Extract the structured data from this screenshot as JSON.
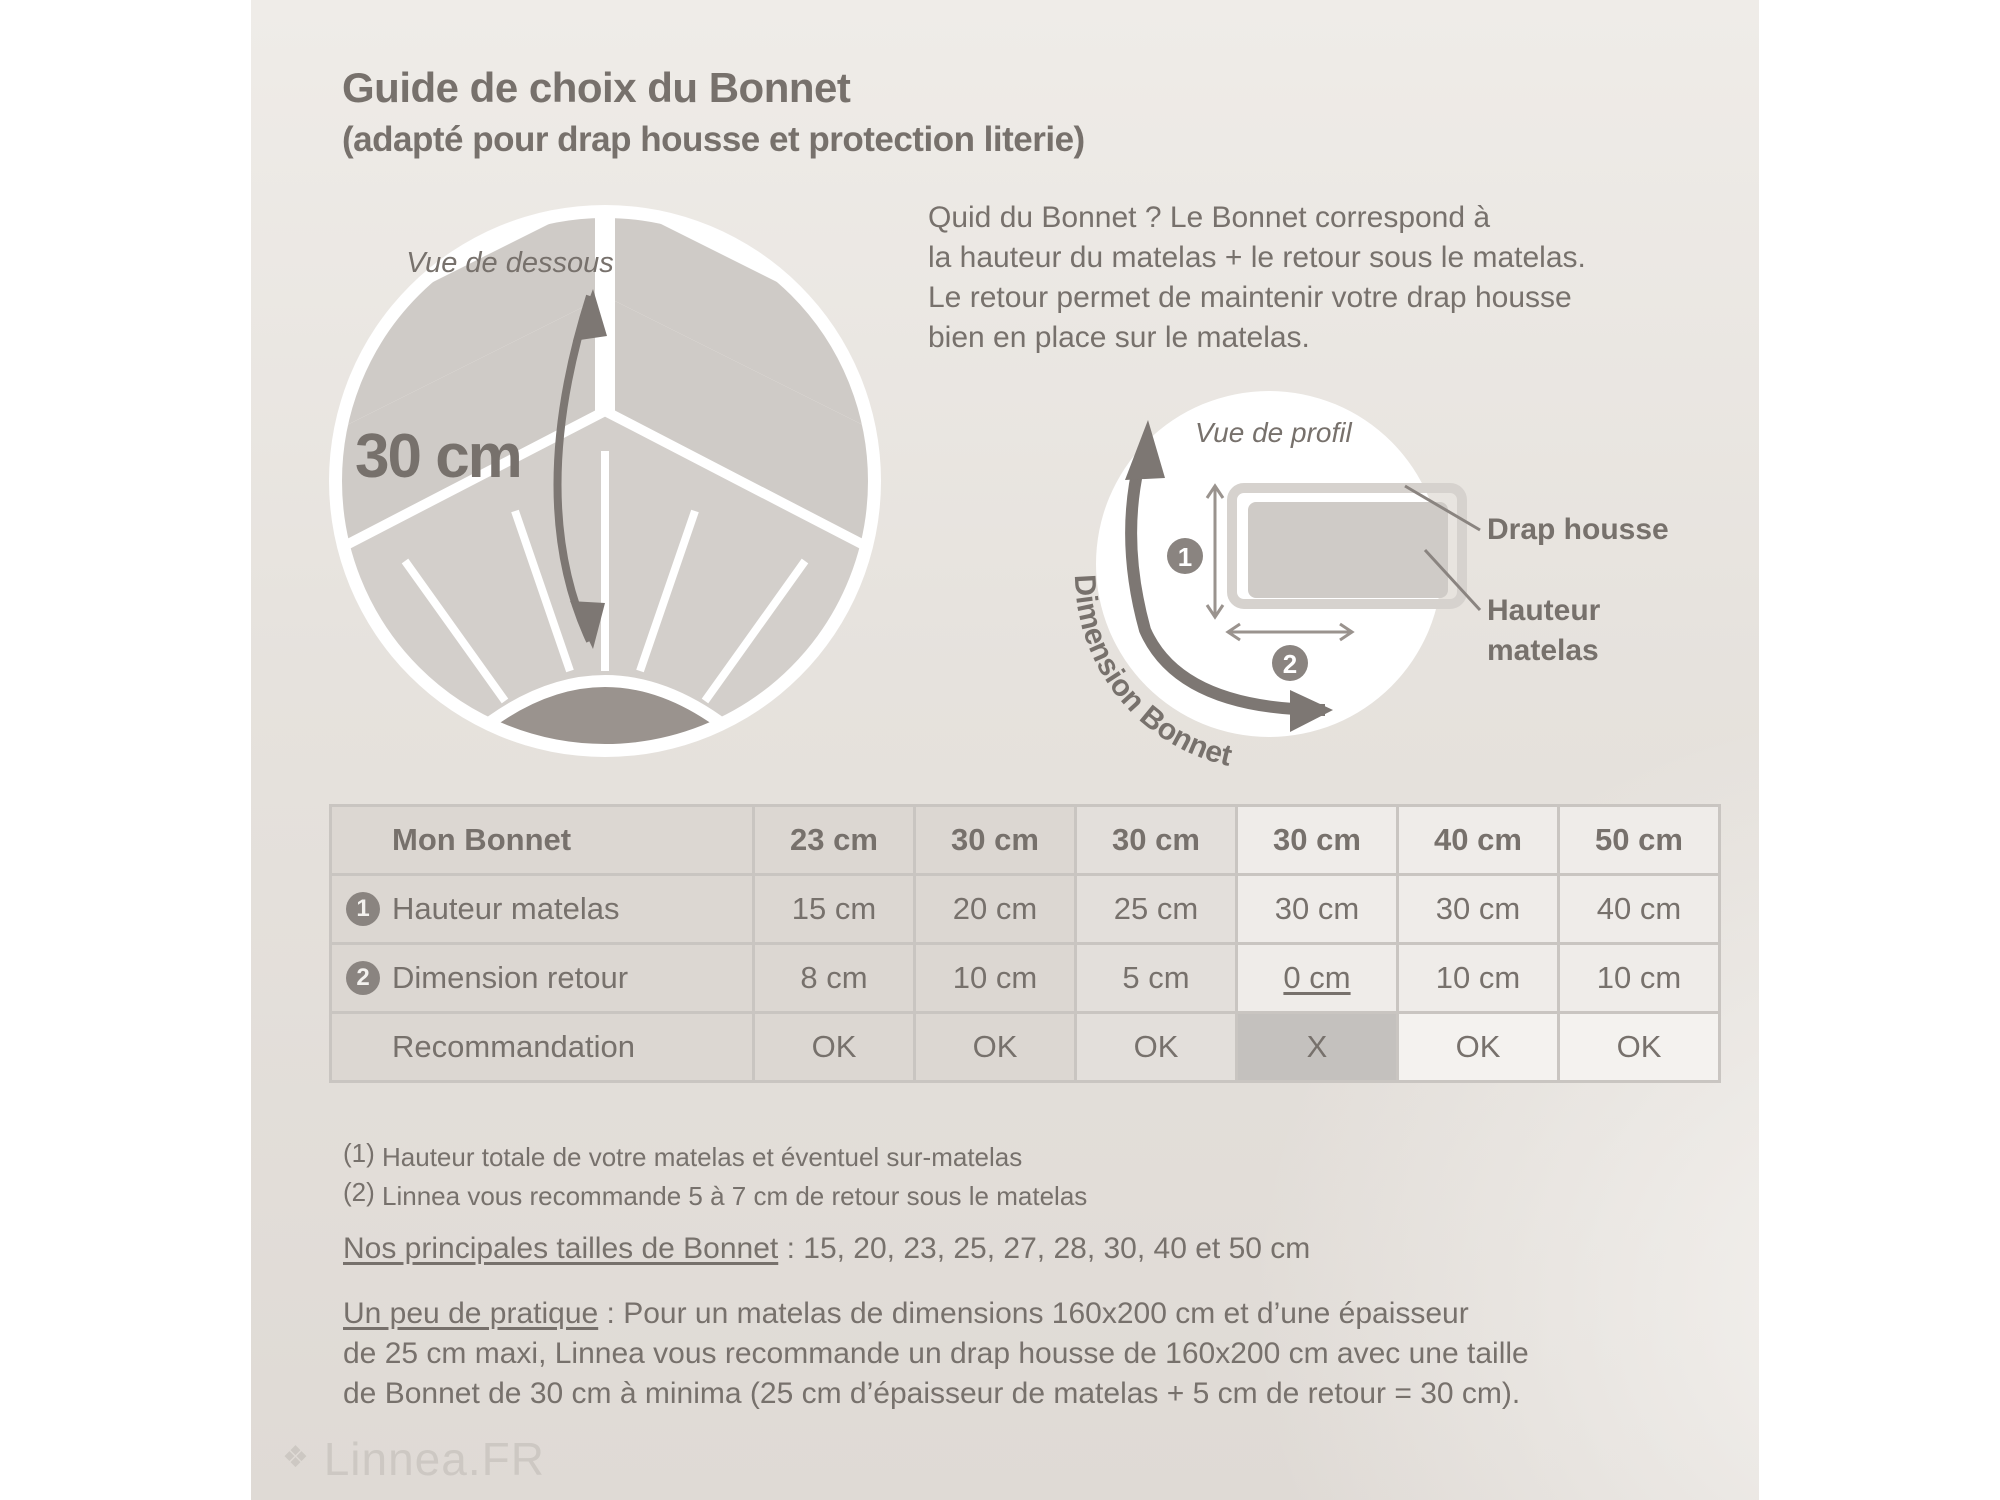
{
  "title": "Guide de choix du Bonnet",
  "subtitle": "(adapté pour drap housse et protection literie)",
  "intro_lines": [
    "Quid du Bonnet ? Le Bonnet correspond à",
    "la hauteur du matelas + le retour sous le matelas.",
    "Le retour permet de maintenir votre drap housse",
    "bien en place sur le matelas."
  ],
  "illustration_bottom": {
    "label": "Vue de dessous",
    "measure": "30 cm"
  },
  "illustration_profile": {
    "label": "Vue de profil",
    "marker_1": "1",
    "marker_2": "2",
    "arc_label": "Dimension Bonnet",
    "callout_drap": "Drap housse",
    "callout_hauteur_1": "Hauteur",
    "callout_hauteur_2": "matelas"
  },
  "table": {
    "header": {
      "label": "Mon Bonnet",
      "values": [
        "23 cm",
        "30 cm",
        "30 cm",
        "30 cm",
        "40 cm",
        "50 cm"
      ]
    },
    "rows": [
      {
        "marker": "1",
        "label": "Hauteur matelas",
        "values": [
          "15 cm",
          "20 cm",
          "25 cm",
          "30 cm",
          "30 cm",
          "40 cm"
        ]
      },
      {
        "marker": "2",
        "label": "Dimension retour",
        "values": [
          "8 cm",
          "10 cm",
          "5 cm",
          "0 cm",
          "10 cm",
          "10 cm"
        ]
      },
      {
        "marker": "",
        "label": "Recommandation",
        "values": [
          "OK",
          "OK",
          "OK",
          "X",
          "OK",
          "OK"
        ]
      }
    ]
  },
  "notes": [
    {
      "ref": "(1)",
      "text": "Hauteur totale de votre matelas et éventuel sur-matelas"
    },
    {
      "ref": "(2)",
      "text": "Linnea vous recommande 5 à 7 cm de retour sous le matelas"
    }
  ],
  "sizes": {
    "label": "Nos principales tailles de Bonnet",
    "text": " : 15, 20, 23, 25, 27, 28, 30, 40 et 50 cm"
  },
  "practice": {
    "label": "Un peu de pratique",
    "line1": " : Pour un matelas de dimensions 160x200 cm et d’une épaisseur",
    "line2": "de 25 cm maxi, Linnea vous recommande un drap housse de 160x200 cm avec une taille",
    "line3": "de Bonnet de 30 cm à minima (25 cm d’épaisseur de matelas + 5 cm de retour = 30 cm)."
  },
  "logo": "Linnea.FR",
  "colors": {
    "text": "#77716c",
    "panel": "#e6e2dd",
    "reject_cell": "#c4c1be"
  }
}
